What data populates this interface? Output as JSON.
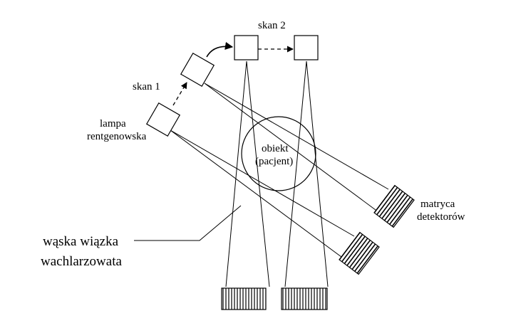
{
  "labels": {
    "scan2": "skan 2",
    "scan1": "skan 1",
    "lamp_line1": "lampa",
    "lamp_line2": "rentgenowska",
    "object_line1": "obiekt",
    "object_line2": "(pacjent)",
    "detector_line1": "matryca",
    "detector_line2": "detektorów",
    "beam_line1": "wąska wiązka",
    "beam_line2": "wachlarzowata"
  },
  "colors": {
    "stroke": "#000000",
    "background": "#ffffff"
  }
}
